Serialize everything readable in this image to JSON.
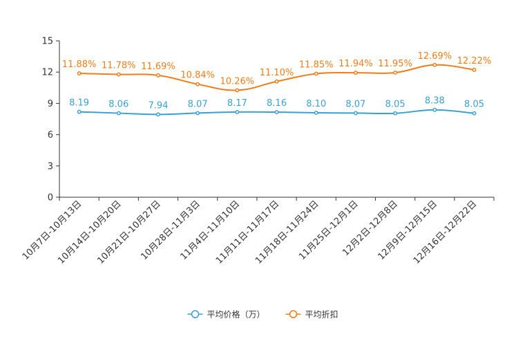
{
  "chart_data": {
    "type": "line",
    "title": "",
    "xlabel": "",
    "ylabel": "",
    "ylim": [
      0,
      15
    ],
    "yticks": [
      0,
      3,
      6,
      9,
      12,
      15
    ],
    "grid": false,
    "legend_position": "bottom-center",
    "categories": [
      "10月7日-10月13日",
      "10月14日-10月20日",
      "10月21日-10月27日",
      "10月28日-11月3日",
      "11月4日-11月10日",
      "11月11日-11月17日",
      "11月18日-11月24日",
      "11月25日-12月1日",
      "12月2日-12月8日",
      "12月9日-12月15日",
      "12月16日-12月22日"
    ],
    "series": [
      {
        "name": "平均价格（万）",
        "color": "#3a9fd4",
        "values": [
          8.19,
          8.06,
          7.94,
          8.07,
          8.17,
          8.16,
          8.1,
          8.07,
          8.05,
          8.38,
          8.05
        ],
        "labels": [
          "8.19",
          "8.06",
          "7.94",
          "8.07",
          "8.17",
          "8.16",
          "8.10",
          "8.07",
          "8.05",
          "8.38",
          "8.05"
        ]
      },
      {
        "name": "平均折扣",
        "color": "#f07d1a",
        "values": [
          11.88,
          11.78,
          11.69,
          10.84,
          10.26,
          11.1,
          11.85,
          11.94,
          11.95,
          12.69,
          12.22
        ],
        "labels": [
          "11.88%",
          "11.78%",
          "11.69%",
          "10.84%",
          "10.26%",
          "11.10%",
          "11.85%",
          "11.94%",
          "11.95%",
          "12.69%",
          "12.22%"
        ]
      }
    ]
  }
}
